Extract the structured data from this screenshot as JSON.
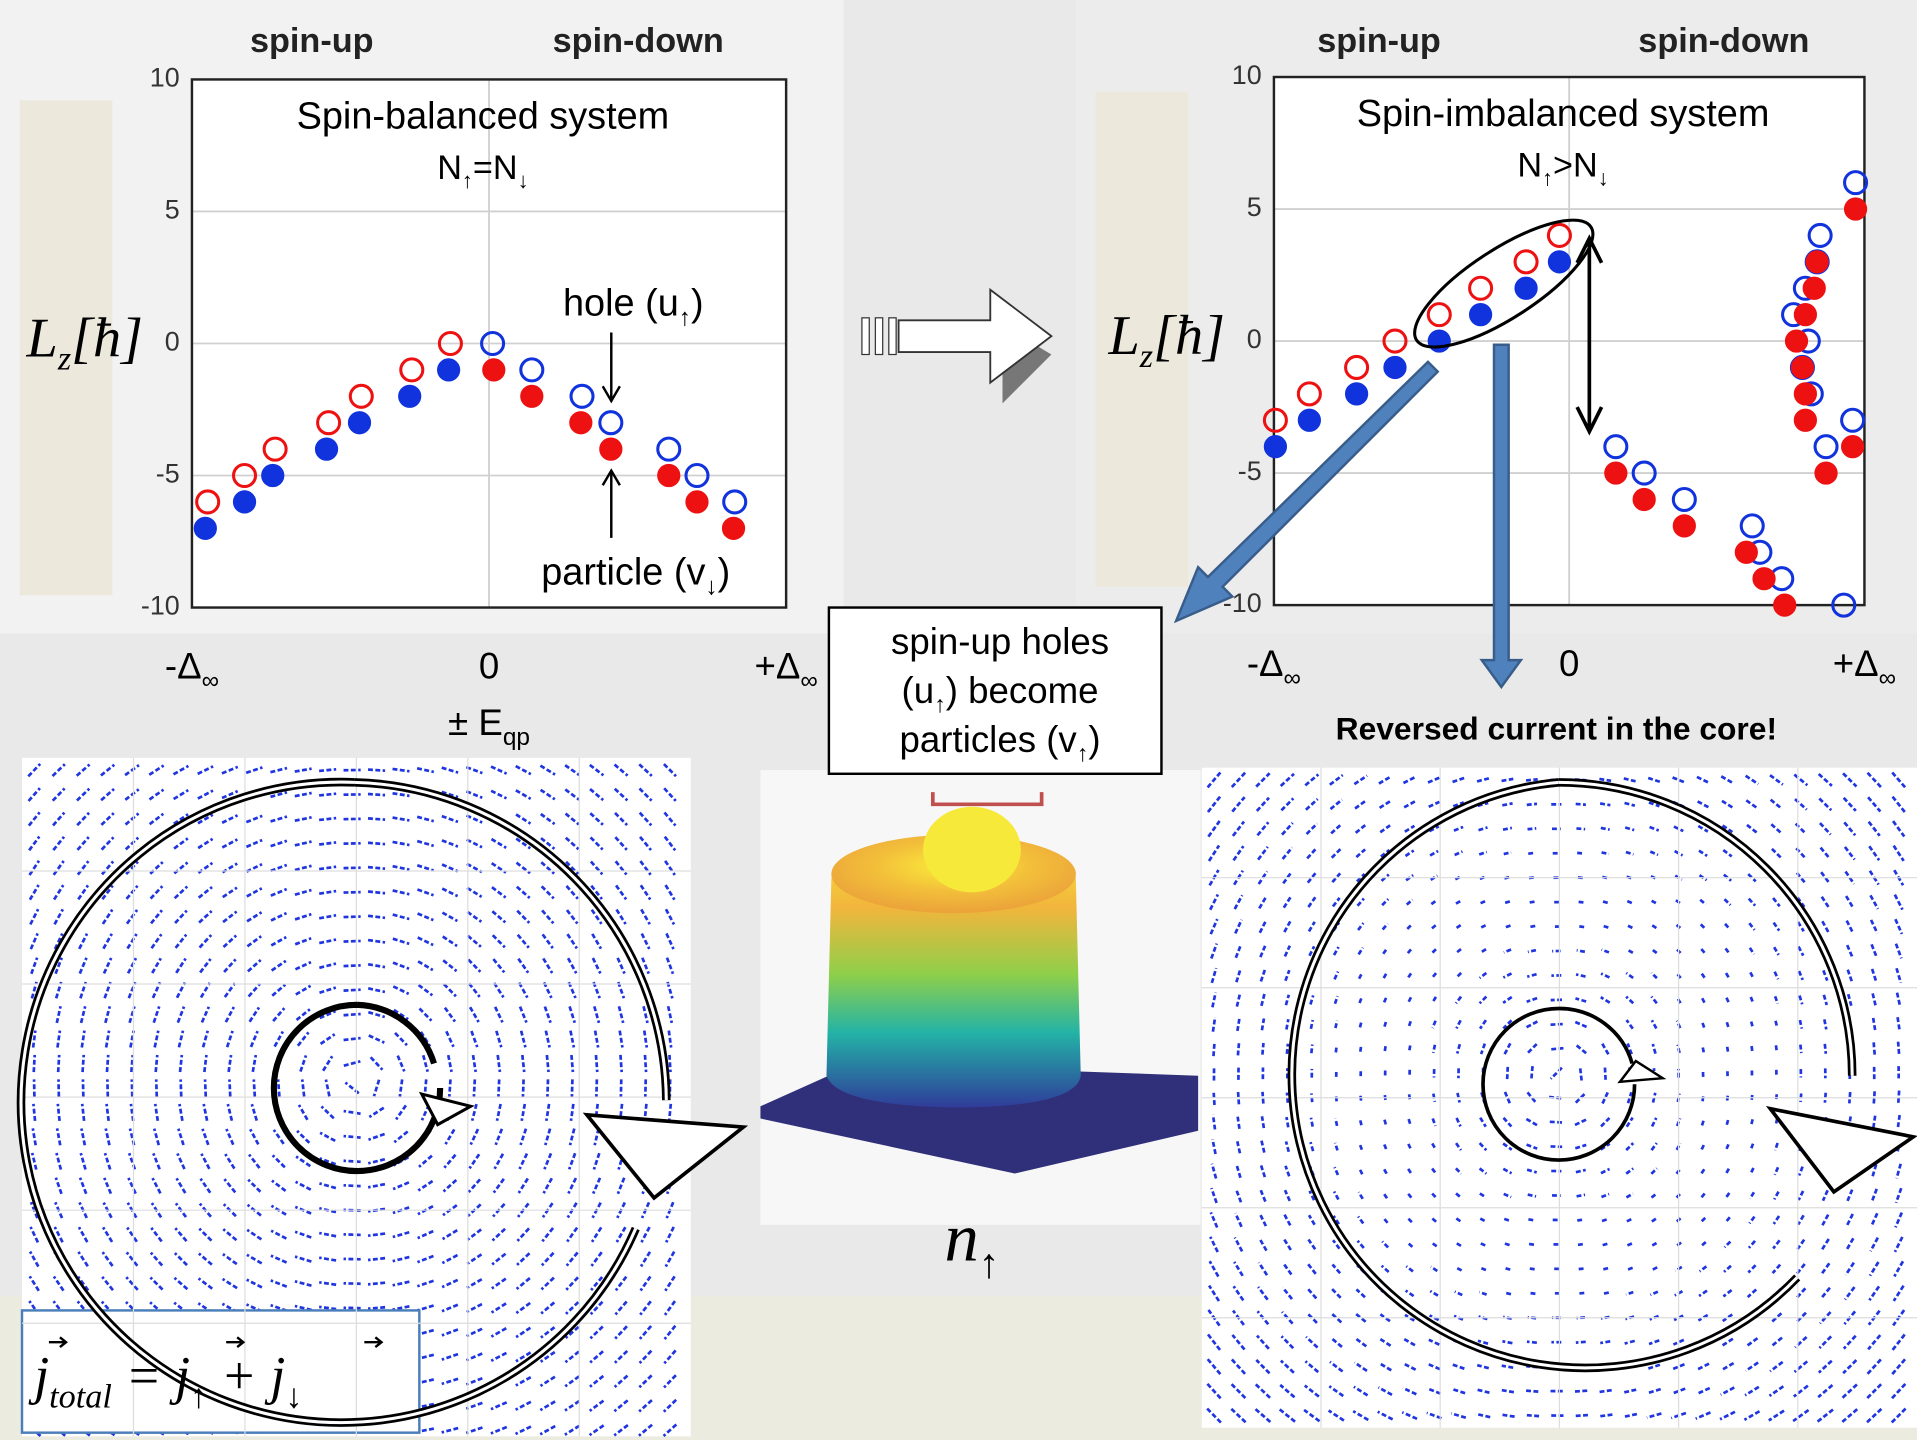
{
  "chart_data": [
    {
      "type": "scatter",
      "title": "Spin-balanced system",
      "subtitle": [
        "N",
        "↑",
        "=N",
        "↓"
      ],
      "column_labels": [
        "spin-up",
        "spin-down"
      ],
      "ylabel": [
        "L",
        "z",
        "[ħ]"
      ],
      "xlabel": [
        "± E",
        "qp"
      ],
      "xlim": [
        -1,
        1
      ],
      "ylim": [
        -10,
        10
      ],
      "xticks": [
        {
          "value": -1,
          "label": [
            "-Δ",
            "∞"
          ]
        },
        0,
        {
          "value": 1,
          "label": [
            "+Δ",
            "∞"
          ]
        }
      ],
      "yticks": [
        -10,
        -5,
        0,
        5,
        10
      ],
      "grid": true,
      "annotations": [
        {
          "text": [
            "hole (u",
            "↑",
            ")"
          ]
        },
        {
          "text": [
            "particle (v",
            "↓",
            ")"
          ]
        }
      ],
      "series": [
        {
          "color": "#ee1111",
          "marker": "open",
          "x": [
            -0.947,
            -0.823,
            -0.72,
            -0.54,
            -0.43,
            -0.26,
            -0.13
          ],
          "values": [
            -6,
            -5,
            -4,
            -3,
            -2,
            -1,
            0
          ]
        },
        {
          "color": "#1133dd",
          "marker": "filled",
          "x": [
            -0.955,
            -0.823,
            -0.728,
            -0.547,
            -0.436,
            -0.267,
            -0.136
          ],
          "values": [
            -7,
            -6,
            -5,
            -4,
            -3,
            -2,
            -1
          ]
        },
        {
          "color": "#1133dd",
          "marker": "open",
          "x": [
            0.012,
            0.144,
            0.313,
            0.41,
            0.605,
            0.7,
            0.827
          ],
          "values": [
            0,
            -1,
            -2,
            -3,
            -4,
            -5,
            -6
          ]
        },
        {
          "color": "#ee1111",
          "marker": "filled",
          "x": [
            0.016,
            0.144,
            0.309,
            0.41,
            0.605,
            0.7,
            0.823
          ],
          "values": [
            -1,
            -2,
            -3,
            -4,
            -5,
            -6,
            -7
          ]
        }
      ]
    },
    {
      "type": "scatter",
      "title": "Spin-imbalanced system",
      "subtitle": [
        "N",
        "↑",
        ">N",
        "↓"
      ],
      "column_labels": [
        "spin-up",
        "spin-down"
      ],
      "ylabel": [
        "L",
        "z",
        "[ħ]"
      ],
      "xlim": [
        -1,
        1
      ],
      "ylim": [
        -10,
        10
      ],
      "xticks": [
        {
          "value": -1,
          "label": [
            "-Δ",
            "∞"
          ]
        },
        0,
        {
          "value": 1,
          "label": [
            "+Δ",
            "∞"
          ]
        }
      ],
      "yticks": [
        -10,
        -5,
        0,
        5,
        10
      ],
      "grid": true,
      "series": [
        {
          "color": "#ee1111",
          "marker": "open",
          "x": [
            -0.995,
            -0.88,
            -0.72,
            -0.59,
            -0.44,
            -0.3,
            -0.146,
            -0.033
          ],
          "values": [
            -3,
            -2,
            -1,
            0,
            1,
            2,
            3,
            4
          ]
        },
        {
          "color": "#1133dd",
          "marker": "filled",
          "x": [
            -0.995,
            -0.88,
            -0.72,
            -0.59,
            -0.44,
            -0.3,
            -0.146,
            -0.033
          ],
          "values": [
            -4,
            -3,
            -2,
            -1,
            0,
            1,
            2,
            3
          ]
        },
        {
          "color": "#1133dd",
          "marker": "open",
          "x": [
            0.158,
            0.254,
            0.39,
            0.62,
            0.646,
            0.72,
            0.93,
            0.85,
            0.84,
            0.8,
            0.76,
            0.81,
            0.79,
            0.82,
            0.87,
            0.96,
            0.97
          ],
          "values": [
            -4,
            -5,
            -6,
            -7,
            -8,
            -9,
            -10,
            4,
            3,
            2,
            1,
            0,
            -1,
            -2,
            -4,
            -3,
            6
          ]
        },
        {
          "color": "#ee1111",
          "marker": "filled",
          "x": [
            0.158,
            0.254,
            0.39,
            0.6,
            0.66,
            0.73,
            0.97,
            0.84,
            0.83,
            0.8,
            0.77,
            0.79,
            0.8,
            0.8,
            0.87,
            0.96
          ],
          "values": [
            -5,
            -6,
            -7,
            -8,
            -9,
            -10,
            5,
            3,
            2,
            1,
            0,
            -1,
            -2,
            -3,
            -5,
            -4
          ]
        }
      ]
    }
  ],
  "figure": {
    "callout": [
      [
        "spin-up holes"
      ],
      [
        "(u",
        "↑",
        ") become"
      ],
      [
        "particles (v",
        "↑",
        ")"
      ]
    ],
    "reversed_label": "Reversed current in the core!",
    "density_label": [
      "n",
      "↑"
    ],
    "formula": [
      "j",
      "total",
      " = j",
      "↑",
      " + j",
      "↓"
    ]
  }
}
